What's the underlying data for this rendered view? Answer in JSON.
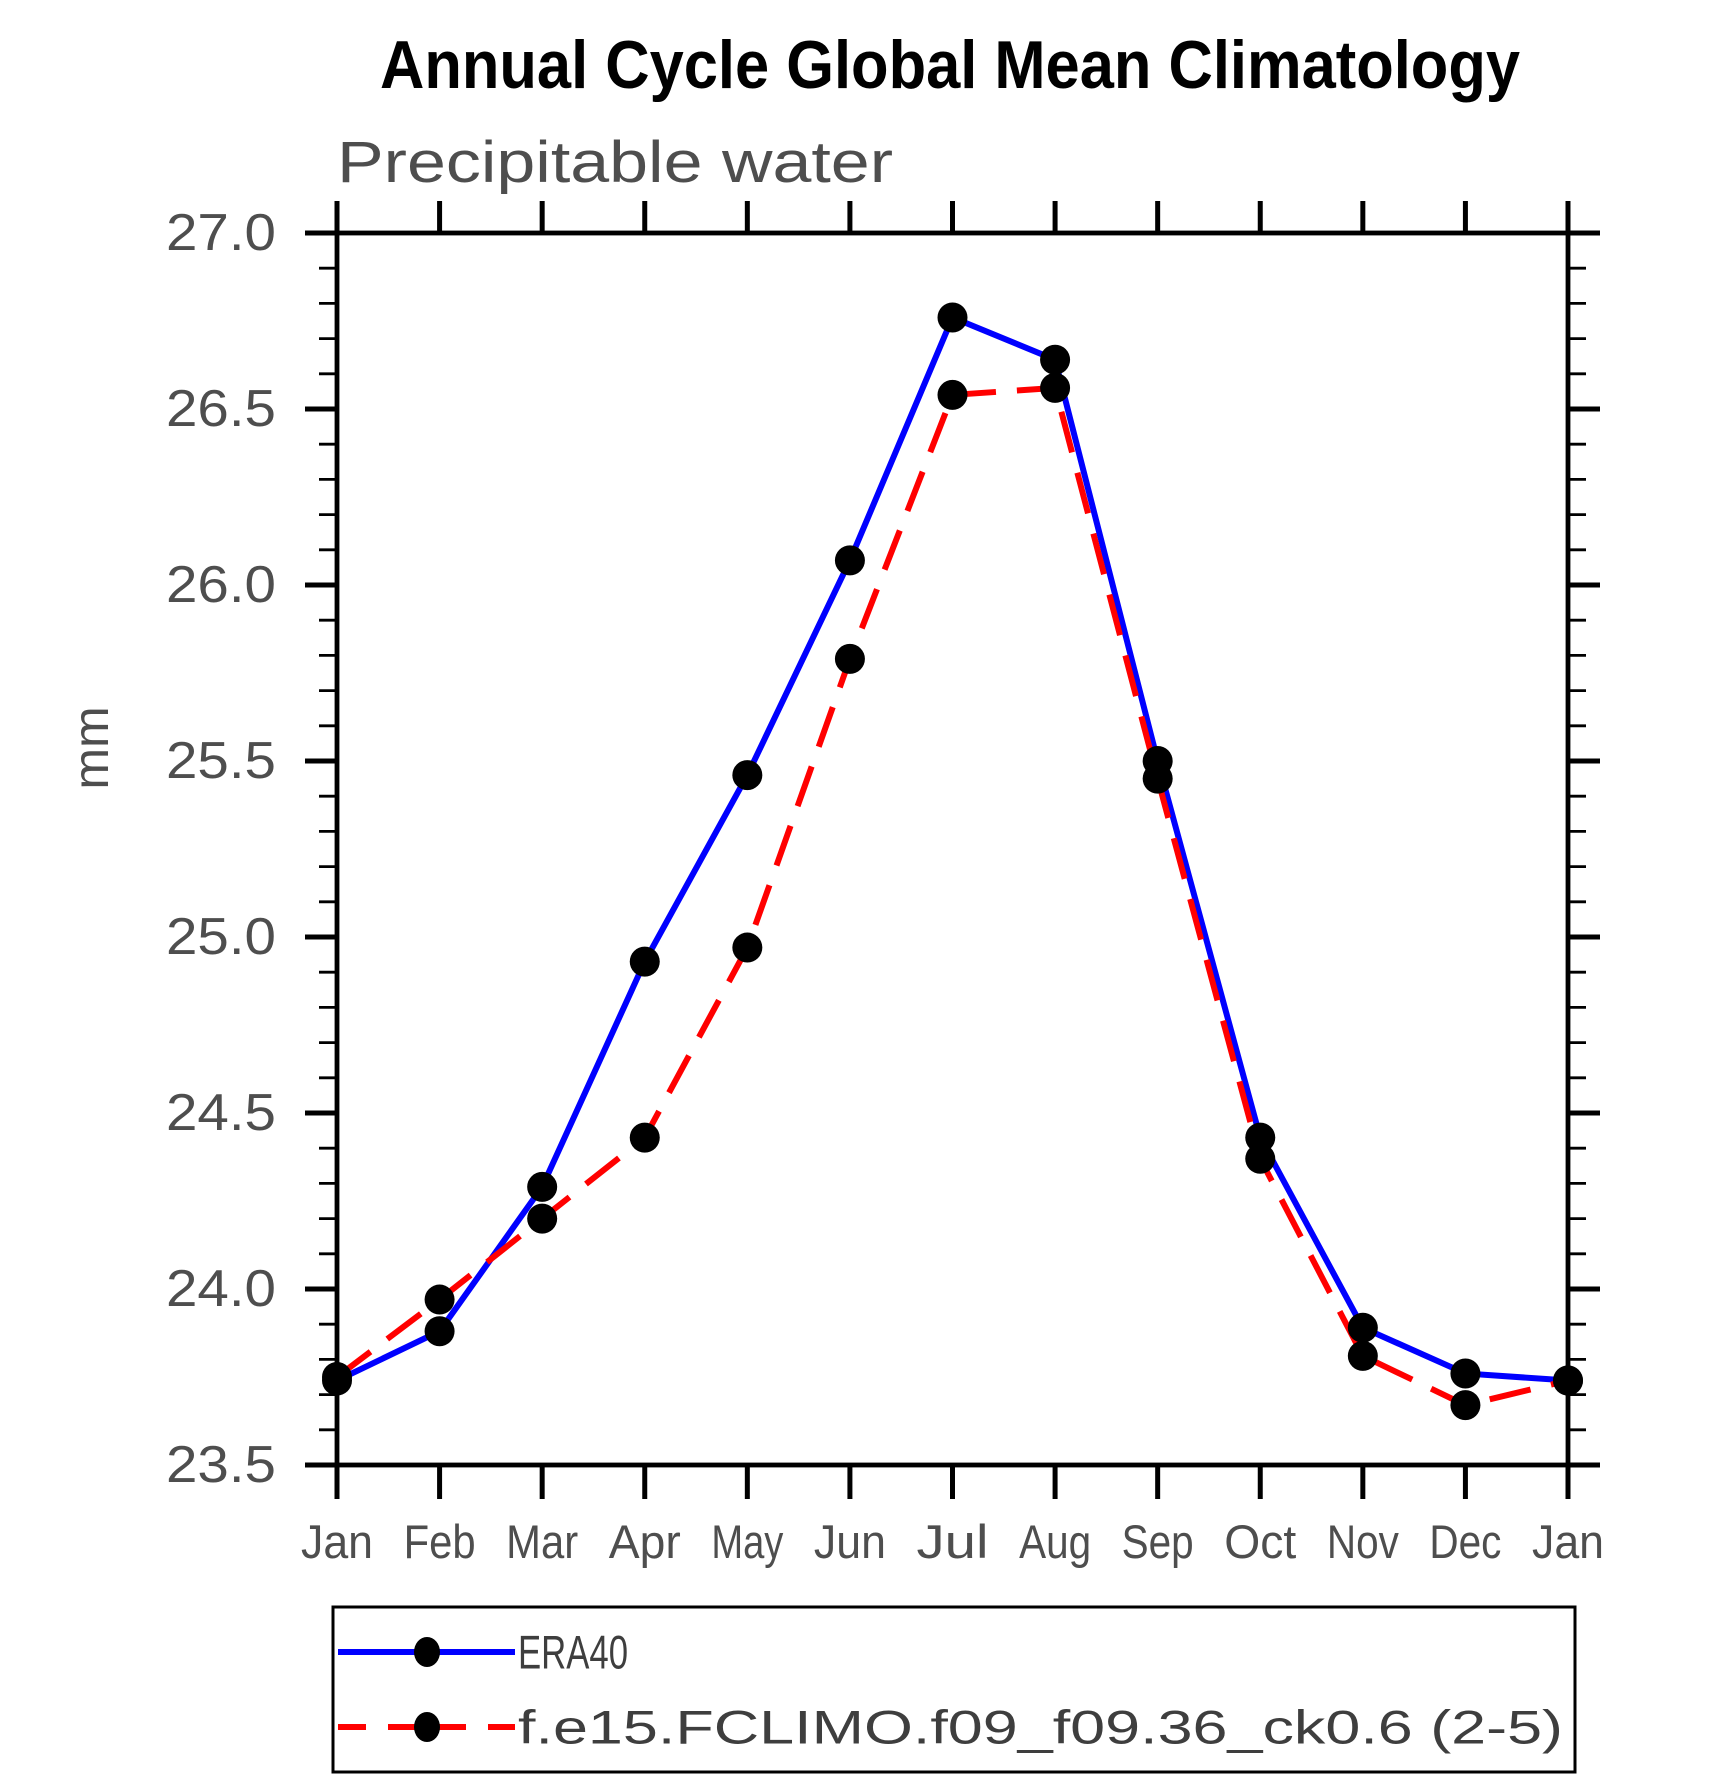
{
  "chart_data": {
    "type": "line",
    "title": "Annual Cycle Global Mean Climatology",
    "subtitle": "Precipitable water",
    "ylabel": "mm",
    "x_categories": [
      "Jan",
      "Feb",
      "Mar",
      "Apr",
      "May",
      "Jun",
      "Jul",
      "Aug",
      "Sep",
      "Oct",
      "Nov",
      "Dec",
      "Jan"
    ],
    "ylim": [
      23.5,
      27.0
    ],
    "ytick_step": 0.5,
    "ytick_minor_step": 0.1,
    "ytick_labels": [
      "23.5",
      "24.0",
      "24.5",
      "25.0",
      "25.5",
      "26.0",
      "26.5",
      "27.0"
    ],
    "grid": false,
    "legend_position": "bottom",
    "marker_color": "#000000",
    "series": [
      {
        "name": "ERA40",
        "color": "#0000ff",
        "style": "solid",
        "marker": "black-dot",
        "values": [
          23.74,
          23.88,
          24.29,
          24.93,
          25.46,
          26.07,
          26.76,
          26.64,
          25.5,
          24.43,
          23.89,
          23.76,
          23.74
        ]
      },
      {
        "name": "f.e15.FCLIMO.f09_f09.36_ck0.6 (2-5)",
        "color": "#ff0000",
        "style": "dashed",
        "marker": "black-dot",
        "values": [
          23.75,
          23.97,
          24.2,
          24.43,
          24.97,
          25.79,
          26.54,
          26.56,
          25.45,
          24.37,
          23.81,
          23.67,
          23.74
        ]
      }
    ]
  }
}
